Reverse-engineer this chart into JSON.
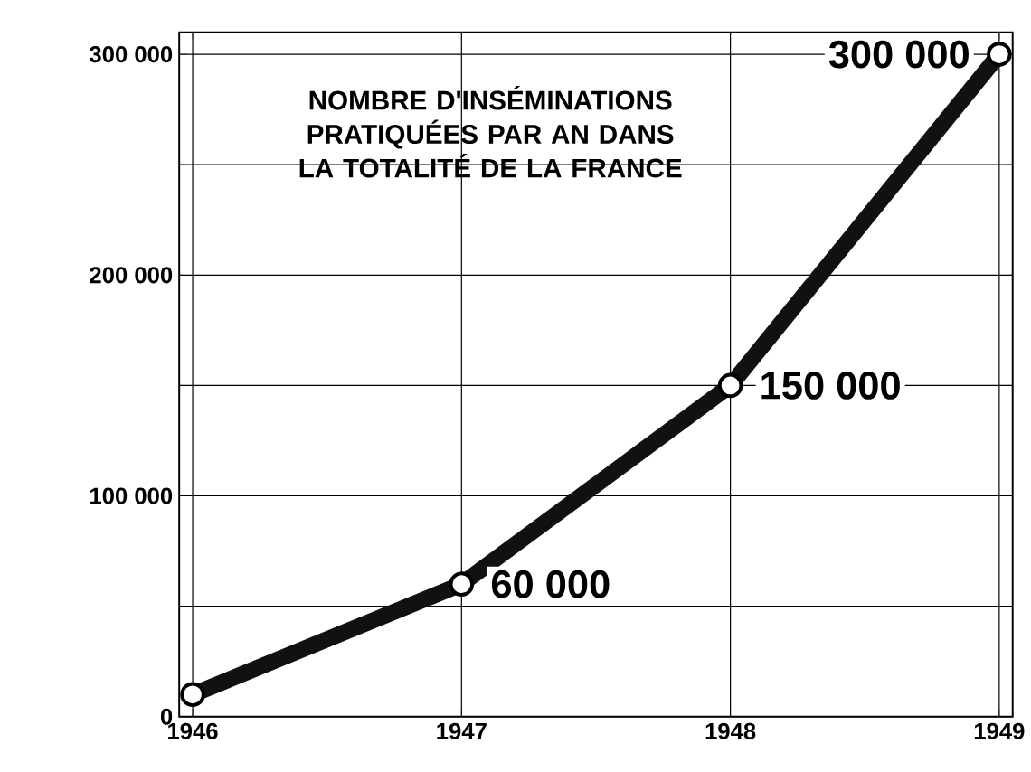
{
  "chart_data": {
    "type": "line",
    "title": "NOMBRE D'INSÉMINATIONS PRATIQUÉES PAR AN DANS LA TOTALITÉ DE LA FRANCE",
    "x": [
      1946,
      1947,
      1948,
      1949
    ],
    "series": [
      {
        "color": "#111111",
        "values": [
          10000,
          60000,
          150000,
          300000
        ],
        "value_labels": [
          null,
          "60 000",
          "150 000",
          "300 000"
        ]
      }
    ],
    "xlim": [
      1945.95,
      1949.05
    ],
    "ylim": [
      0,
      310000
    ],
    "xticks": [
      1946,
      1947,
      1948,
      1949
    ],
    "yticks": [
      {
        "value": 0,
        "label": "0"
      },
      {
        "value": 50000,
        "label": null
      },
      {
        "value": 100000,
        "label": "100 000"
      },
      {
        "value": 150000,
        "label": null
      },
      {
        "value": 200000,
        "label": "200 000"
      },
      {
        "value": 250000,
        "label": null
      },
      {
        "value": 300000,
        "label": "300 000"
      }
    ],
    "grid": true,
    "marker": "circle",
    "line_style": "solid"
  }
}
